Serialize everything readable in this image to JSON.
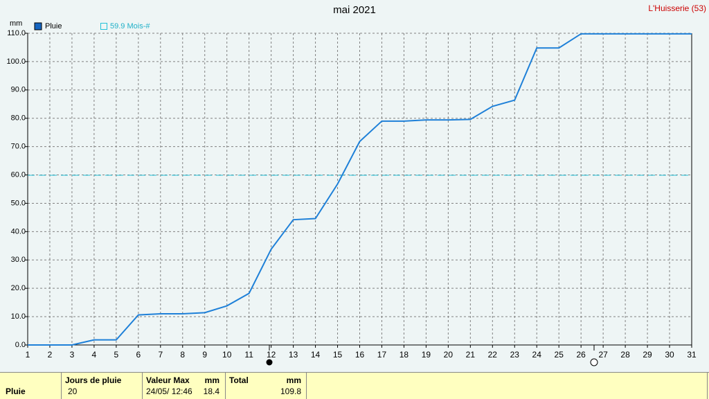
{
  "chart_data": {
    "type": "line",
    "title": "mai 2021",
    "station": "L'Huisserie (53)",
    "y_label": "mm",
    "x": [
      1,
      2,
      3,
      4,
      5,
      6,
      7,
      8,
      9,
      10,
      11,
      12,
      13,
      14,
      15,
      16,
      17,
      18,
      19,
      20,
      21,
      22,
      23,
      24,
      25,
      26,
      27,
      28,
      29,
      30,
      31
    ],
    "xlim": [
      1,
      31
    ],
    "xticks": [
      1,
      2,
      3,
      4,
      5,
      6,
      7,
      8,
      9,
      10,
      11,
      12,
      13,
      14,
      15,
      16,
      17,
      18,
      19,
      20,
      21,
      22,
      23,
      24,
      25,
      26,
      27,
      28,
      29,
      30,
      31
    ],
    "ylim": [
      0,
      110
    ],
    "yticks": [
      {
        "value": 0,
        "label": "0.0"
      },
      {
        "value": 10,
        "label": "10.0"
      },
      {
        "value": 20,
        "label": "20.0"
      },
      {
        "value": 30,
        "label": "30.0"
      },
      {
        "value": 40,
        "label": "40.0"
      },
      {
        "value": 50,
        "label": "50.0"
      },
      {
        "value": 60,
        "label": "60.0"
      },
      {
        "value": 70,
        "label": "70.0"
      },
      {
        "value": 80,
        "label": "80.0"
      },
      {
        "value": 90,
        "label": "90.0"
      },
      {
        "value": 100,
        "label": "100.0"
      },
      {
        "value": 110,
        "label": "110.0"
      }
    ],
    "grid": true,
    "series": [
      {
        "name": "Pluie",
        "color": "#1e80d8",
        "values": [
          0,
          0,
          0,
          1.8,
          1.8,
          10.6,
          11.0,
          11.0,
          11.4,
          13.8,
          18.2,
          33.8,
          44.2,
          44.6,
          56.8,
          71.8,
          79.0,
          79.0,
          79.4,
          79.4,
          79.6,
          84.2,
          86.4,
          104.8,
          104.8,
          109.8,
          109.8,
          109.8,
          109.8,
          109.8,
          109.8
        ]
      }
    ],
    "reference": {
      "value": 59.9,
      "label": "59.9 Mois-#",
      "color": "#20c0d8"
    }
  },
  "summary": {
    "row_label": "Pluie",
    "columns": [
      {
        "title": "Jours de pluie",
        "value": 20
      },
      {
        "title": "Valeur Max",
        "unit": "mm",
        "date": "24/05/ 12:46",
        "value": 18.4
      },
      {
        "title": "Total",
        "unit": "mm",
        "value": 109.8
      }
    ]
  }
}
